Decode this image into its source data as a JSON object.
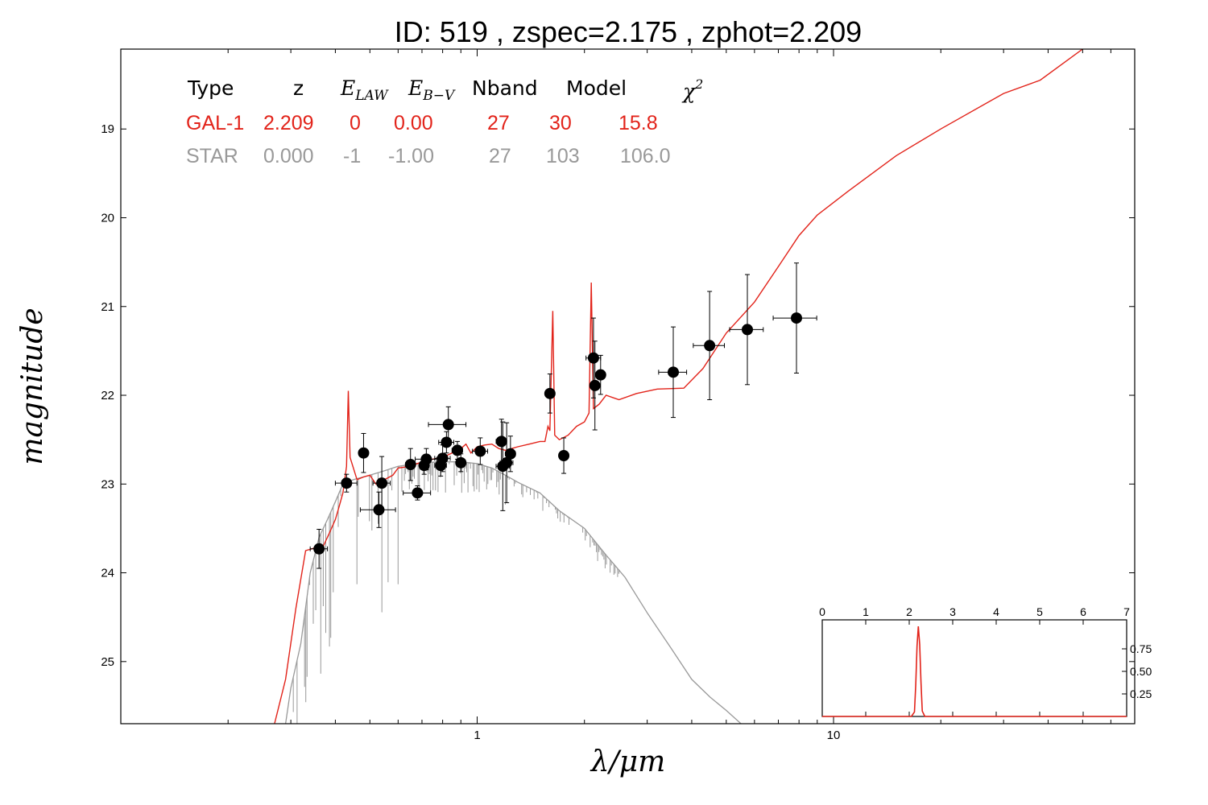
{
  "colors": {
    "galaxy": "#e2231a",
    "star": "#999999",
    "points": "#000000",
    "frame": "#000000"
  },
  "chart_data": [
    {
      "type": "scatter",
      "title": "ID:  519   , zspec=2.175 , zphot=2.209",
      "xlabel": "λ/μm",
      "ylabel": "magnitude",
      "xscale": "log",
      "xlim": [
        0.1,
        70
      ],
      "ylim": [
        25.7,
        18.1
      ],
      "x_tick_labels": [
        {
          "value": 1,
          "label": "1"
        },
        {
          "value": 10,
          "label": "10"
        }
      ],
      "y_tick_labels": [
        {
          "value": 19,
          "label": "19"
        },
        {
          "value": 20,
          "label": "20"
        },
        {
          "value": 21,
          "label": "21"
        },
        {
          "value": 22,
          "label": "22"
        },
        {
          "value": 23,
          "label": "23"
        },
        {
          "value": 24,
          "label": "24"
        },
        {
          "value": 25,
          "label": "25"
        }
      ],
      "table": {
        "headers": [
          "Type",
          "z",
          "E_LAW",
          "E_B-V",
          "Nband",
          "Model",
          "χ²"
        ],
        "rows": [
          {
            "name": "GAL-1",
            "values": [
              "2.209",
              "0",
              "0.00",
              "27",
              "30",
              "15.8"
            ],
            "color": "#e2231a"
          },
          {
            "name": "STAR",
            "values": [
              "0.000",
              "-1",
              "-1.00",
              "27",
              "103",
              "106.0"
            ],
            "color": "#999999"
          }
        ]
      },
      "photometry": [
        {
          "x": 0.36,
          "y": 23.73,
          "xerr": 0.02,
          "yerr": 0.22
        },
        {
          "x": 0.43,
          "y": 22.99,
          "xerr": 0.03,
          "yerr": 0.1
        },
        {
          "x": 0.48,
          "y": 22.65,
          "xerr": 0.01,
          "yerr": 0.22
        },
        {
          "x": 0.53,
          "y": 23.29,
          "xerr": 0.06,
          "yerr": 0.2
        },
        {
          "x": 0.54,
          "y": 22.99,
          "xerr": 0.03,
          "yerr": 0.3
        },
        {
          "x": 0.65,
          "y": 22.78,
          "xerr": 0.02,
          "yerr": 0.18
        },
        {
          "x": 0.68,
          "y": 23.1,
          "xerr": 0.06,
          "yerr": 0.08
        },
        {
          "x": 0.71,
          "y": 22.79,
          "xerr": 0.02,
          "yerr": 0.1
        },
        {
          "x": 0.72,
          "y": 22.72,
          "xerr": 0.05,
          "yerr": 0.12
        },
        {
          "x": 0.79,
          "y": 22.79,
          "xerr": 0.03,
          "yerr": 0.12
        },
        {
          "x": 0.8,
          "y": 22.71,
          "xerr": 0.04,
          "yerr": 0.15
        },
        {
          "x": 0.82,
          "y": 22.53,
          "xerr": 0.04,
          "yerr": 0.12
        },
        {
          "x": 0.83,
          "y": 22.33,
          "xerr": 0.1,
          "yerr": 0.2
        },
        {
          "x": 0.88,
          "y": 22.62,
          "xerr": 0.03,
          "yerr": 0.1
        },
        {
          "x": 0.9,
          "y": 22.76,
          "xerr": 0.02,
          "yerr": 0.1
        },
        {
          "x": 1.02,
          "y": 22.63,
          "xerr": 0.05,
          "yerr": 0.15
        },
        {
          "x": 1.17,
          "y": 22.52,
          "xerr": 0.04,
          "yerr": 0.25
        },
        {
          "x": 1.18,
          "y": 22.8,
          "xerr": 0.05,
          "yerr": 0.5
        },
        {
          "x": 1.21,
          "y": 22.76,
          "xerr": 0.05,
          "yerr": 0.45
        },
        {
          "x": 1.24,
          "y": 22.66,
          "xerr": 0.04,
          "yerr": 0.2
        },
        {
          "x": 1.6,
          "y": 21.98,
          "xerr": 0.03,
          "yerr": 0.22
        },
        {
          "x": 1.75,
          "y": 22.68,
          "xerr": 0.04,
          "yerr": 0.2
        },
        {
          "x": 2.12,
          "y": 21.58,
          "xerr": 0.1,
          "yerr": 0.45
        },
        {
          "x": 2.14,
          "y": 21.89,
          "xerr": 0.04,
          "yerr": 0.5
        },
        {
          "x": 2.22,
          "y": 21.77,
          "xerr": 0.05,
          "yerr": 0.22
        },
        {
          "x": 3.55,
          "y": 21.74,
          "xerr": 0.32,
          "yerr": 0.51
        },
        {
          "x": 4.49,
          "y": 21.44,
          "xerr": 0.45,
          "yerr": 0.61
        },
        {
          "x": 5.73,
          "y": 21.26,
          "xerr": 0.62,
          "yerr": 0.62
        },
        {
          "x": 7.87,
          "y": 21.13,
          "xerr": 1.1,
          "yerr": 0.62
        }
      ],
      "galaxy_model": [
        [
          0.27,
          25.7
        ],
        [
          0.29,
          25.2
        ],
        [
          0.31,
          24.4
        ],
        [
          0.33,
          23.75
        ],
        [
          0.35,
          23.72
        ],
        [
          0.37,
          23.7
        ],
        [
          0.385,
          23.55
        ],
        [
          0.4,
          23.4
        ],
        [
          0.41,
          23.25
        ],
        [
          0.42,
          23.1
        ],
        [
          0.43,
          22.8
        ],
        [
          0.435,
          21.95
        ],
        [
          0.44,
          22.7
        ],
        [
          0.46,
          22.95
        ],
        [
          0.48,
          22.92
        ],
        [
          0.5,
          22.9
        ],
        [
          0.52,
          23.0
        ],
        [
          0.55,
          22.95
        ],
        [
          0.58,
          22.9
        ],
        [
          0.6,
          22.82
        ],
        [
          0.65,
          22.8
        ],
        [
          0.7,
          22.75
        ],
        [
          0.75,
          22.72
        ],
        [
          0.8,
          22.7
        ],
        [
          0.85,
          22.65
        ],
        [
          0.9,
          22.6
        ],
        [
          0.93,
          22.55
        ],
        [
          0.96,
          22.65
        ],
        [
          1.0,
          22.58
        ],
        [
          1.05,
          22.56
        ],
        [
          1.1,
          22.55
        ],
        [
          1.15,
          22.6
        ],
        [
          1.2,
          22.62
        ],
        [
          1.25,
          22.6
        ],
        [
          1.3,
          22.58
        ],
        [
          1.4,
          22.55
        ],
        [
          1.5,
          22.52
        ],
        [
          1.55,
          22.52
        ],
        [
          1.58,
          22.35
        ],
        [
          1.6,
          22.4
        ],
        [
          1.63,
          21.05
        ],
        [
          1.65,
          22.45
        ],
        [
          1.7,
          22.5
        ],
        [
          1.8,
          22.45
        ],
        [
          1.9,
          22.35
        ],
        [
          2.0,
          22.3
        ],
        [
          2.06,
          22.2
        ],
        [
          2.09,
          20.73
        ],
        [
          2.12,
          22.15
        ],
        [
          2.2,
          22.1
        ],
        [
          2.3,
          22.0
        ],
        [
          2.5,
          22.05
        ],
        [
          2.8,
          21.98
        ],
        [
          3.2,
          21.93
        ],
        [
          3.8,
          21.92
        ],
        [
          4.3,
          21.7
        ],
        [
          5.0,
          21.3
        ],
        [
          6.0,
          20.95
        ],
        [
          7.0,
          20.55
        ],
        [
          8.0,
          20.2
        ],
        [
          9.0,
          19.97
        ],
        [
          11.0,
          19.7
        ],
        [
          15.0,
          19.3
        ],
        [
          20.0,
          19.0
        ],
        [
          30.0,
          18.6
        ],
        [
          38.0,
          18.45
        ],
        [
          50.0,
          18.1
        ],
        [
          70.0,
          17.6
        ]
      ],
      "star_model": [
        [
          0.29,
          25.7
        ],
        [
          0.3,
          25.3
        ],
        [
          0.32,
          24.8
        ],
        [
          0.34,
          24.0
        ],
        [
          0.36,
          23.6
        ],
        [
          0.38,
          23.4
        ],
        [
          0.4,
          23.2
        ],
        [
          0.42,
          23.0
        ],
        [
          0.45,
          22.95
        ],
        [
          0.5,
          22.9
        ],
        [
          0.55,
          22.85
        ],
        [
          0.6,
          22.8
        ],
        [
          0.65,
          22.78
        ],
        [
          0.7,
          22.76
        ],
        [
          0.8,
          22.75
        ],
        [
          0.9,
          22.75
        ],
        [
          1.0,
          22.77
        ],
        [
          1.1,
          22.82
        ],
        [
          1.2,
          22.9
        ],
        [
          1.3,
          22.98
        ],
        [
          1.5,
          23.1
        ],
        [
          1.7,
          23.3
        ],
        [
          2.0,
          23.5
        ],
        [
          2.3,
          23.8
        ],
        [
          2.6,
          24.05
        ],
        [
          3.0,
          24.45
        ],
        [
          3.5,
          24.85
        ],
        [
          4.0,
          25.2
        ],
        [
          4.5,
          25.4
        ],
        [
          5.0,
          25.55
        ],
        [
          5.5,
          25.7
        ],
        [
          6.0,
          25.85
        ],
        [
          6.5,
          26.0
        ]
      ]
    },
    {
      "type": "line",
      "title": "",
      "xlim": [
        0,
        7
      ],
      "ylim": [
        0,
        1.0
      ],
      "x_tick_labels": [
        "0",
        "1",
        "2",
        "3",
        "4",
        "5",
        "6",
        "7"
      ],
      "y_tick_labels": [
        {
          "value": 0.25,
          "label": "0.25"
        },
        {
          "value": 0.5,
          "label": "0.50"
        },
        {
          "value": 0.75,
          "label": "0.75"
        }
      ],
      "pdz": [
        [
          0,
          0.0
        ],
        [
          2.05,
          0.0
        ],
        [
          2.12,
          0.05
        ],
        [
          2.15,
          0.35
        ],
        [
          2.18,
          0.78
        ],
        [
          2.21,
          1.0
        ],
        [
          2.24,
          0.8
        ],
        [
          2.27,
          0.38
        ],
        [
          2.3,
          0.06
        ],
        [
          2.36,
          0.0
        ],
        [
          7,
          0.0
        ]
      ]
    }
  ]
}
